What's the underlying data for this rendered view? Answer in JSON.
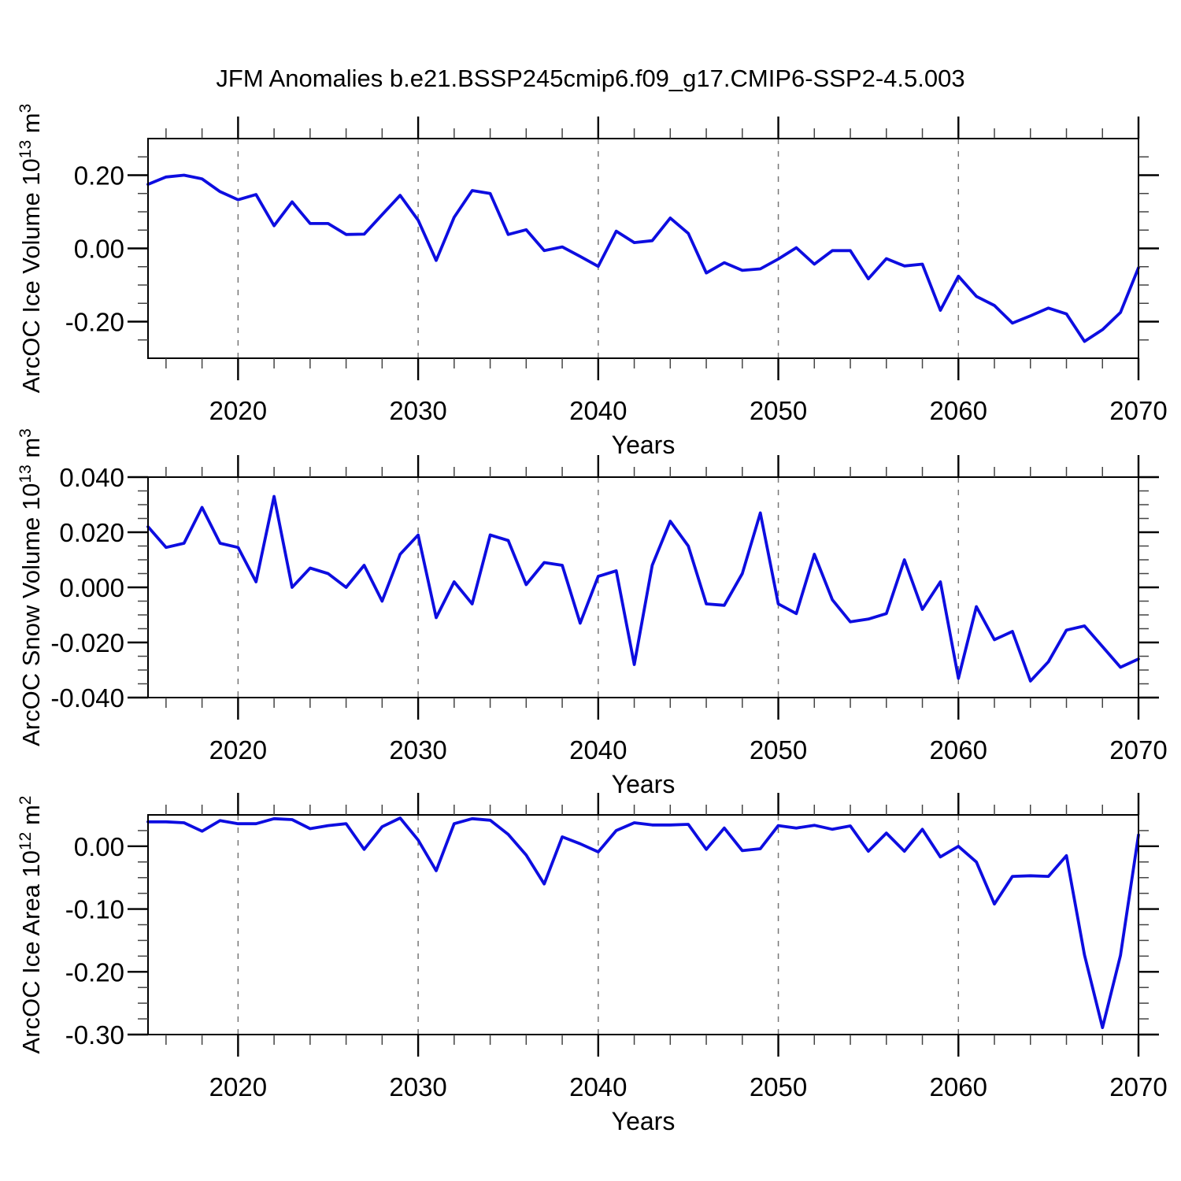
{
  "title": "JFM Anomalies b.e21.BSSP245cmip6.f09_g17.CMIP6-SSP2-4.5.003",
  "xlabel": "Years",
  "colors": {
    "line": "#0d0de0",
    "grid": "#777777",
    "axis": "#000000",
    "text": "#000000",
    "minor_tick": "#444444"
  },
  "chart_data": [
    {
      "type": "line",
      "panel": "ice-volume",
      "ylabel_segments": [
        {
          "t": "ArcOC Ice Volume 10",
          "sup": false
        },
        {
          "t": "13",
          "sup": true
        },
        {
          "t": " m",
          "sup": false
        },
        {
          "t": "3",
          "sup": true
        }
      ],
      "xlabel": "Years",
      "xlim": [
        2015,
        2070
      ],
      "ylim": [
        -0.3,
        0.3
      ],
      "x_major_ticks": [
        2020,
        2030,
        2040,
        2050,
        2060,
        2070
      ],
      "x_tick_labels": [
        "2020",
        "2030",
        "2040",
        "2050",
        "2060",
        "2070"
      ],
      "x_minor_step": 2,
      "grid_years": [
        2020,
        2030,
        2040,
        2050,
        2060
      ],
      "yticks_major": [
        {
          "v": 0.2,
          "label": "0.20"
        },
        {
          "v": 0.0,
          "label": "0.00"
        },
        {
          "v": -0.2,
          "label": "-0.20"
        }
      ],
      "yticks_minor": [
        -0.25,
        -0.15,
        -0.1,
        -0.05,
        0.05,
        0.1,
        0.15,
        0.25
      ],
      "x": [
        2015,
        2016,
        2017,
        2018,
        2019,
        2020,
        2021,
        2022,
        2023,
        2024,
        2025,
        2026,
        2027,
        2028,
        2029,
        2030,
        2031,
        2032,
        2033,
        2034,
        2035,
        2036,
        2037,
        2038,
        2039,
        2040,
        2041,
        2042,
        2043,
        2044,
        2045,
        2046,
        2047,
        2048,
        2049,
        2050,
        2051,
        2052,
        2053,
        2054,
        2055,
        2056,
        2057,
        2058,
        2059,
        2060,
        2061,
        2062,
        2063,
        2064,
        2065,
        2066,
        2067,
        2068,
        2069,
        2070
      ],
      "values": [
        0.175,
        0.195,
        0.2,
        0.19,
        0.155,
        0.133,
        0.147,
        0.062,
        0.127,
        0.068,
        0.068,
        0.038,
        0.039,
        0.092,
        0.145,
        0.077,
        -0.033,
        0.085,
        0.158,
        0.15,
        0.038,
        0.051,
        -0.006,
        0.004,
        -0.022,
        -0.049,
        0.047,
        0.016,
        0.021,
        0.083,
        0.041,
        -0.067,
        -0.039,
        -0.06,
        -0.056,
        -0.029,
        0.002,
        -0.043,
        -0.006,
        -0.006,
        -0.083,
        -0.028,
        -0.048,
        -0.043,
        -0.169,
        -0.076,
        -0.131,
        -0.156,
        -0.204,
        -0.184,
        -0.163,
        -0.179,
        -0.254,
        -0.222,
        -0.175,
        -0.053
      ]
    },
    {
      "type": "line",
      "panel": "snow-volume",
      "ylabel_segments": [
        {
          "t": "ArcOC Snow Volume 10",
          "sup": false
        },
        {
          "t": "13",
          "sup": true
        },
        {
          "t": " m",
          "sup": false
        },
        {
          "t": "3",
          "sup": true
        }
      ],
      "xlabel": "Years",
      "xlim": [
        2015,
        2070
      ],
      "ylim": [
        -0.04,
        0.04
      ],
      "x_major_ticks": [
        2020,
        2030,
        2040,
        2050,
        2060,
        2070
      ],
      "x_tick_labels": [
        "2020",
        "2030",
        "2040",
        "2050",
        "2060",
        "2070"
      ],
      "x_minor_step": 2,
      "grid_years": [
        2020,
        2030,
        2040,
        2050,
        2060
      ],
      "yticks_major": [
        {
          "v": 0.04,
          "label": "0.040"
        },
        {
          "v": 0.02,
          "label": "0.020"
        },
        {
          "v": 0.0,
          "label": "0.000"
        },
        {
          "v": -0.02,
          "label": "-0.020"
        },
        {
          "v": -0.04,
          "label": "-0.040"
        }
      ],
      "yticks_minor": [
        -0.035,
        -0.03,
        -0.025,
        -0.015,
        -0.01,
        -0.005,
        0.005,
        0.01,
        0.015,
        0.025,
        0.03,
        0.035
      ],
      "x": [
        2015,
        2016,
        2017,
        2018,
        2019,
        2020,
        2021,
        2022,
        2023,
        2024,
        2025,
        2026,
        2027,
        2028,
        2029,
        2030,
        2031,
        2032,
        2033,
        2034,
        2035,
        2036,
        2037,
        2038,
        2039,
        2040,
        2041,
        2042,
        2043,
        2044,
        2045,
        2046,
        2047,
        2048,
        2049,
        2050,
        2051,
        2052,
        2053,
        2054,
        2055,
        2056,
        2057,
        2058,
        2059,
        2060,
        2061,
        2062,
        2063,
        2064,
        2065,
        2066,
        2067,
        2068,
        2069,
        2070
      ],
      "values": [
        0.022,
        0.0145,
        0.016,
        0.029,
        0.016,
        0.0145,
        0.002,
        0.033,
        0.0,
        0.007,
        0.005,
        0.0,
        0.008,
        -0.005,
        0.012,
        0.019,
        -0.011,
        0.002,
        -0.006,
        0.019,
        0.017,
        0.001,
        0.009,
        0.008,
        -0.013,
        0.004,
        0.006,
        -0.028,
        0.008,
        0.024,
        0.015,
        -0.006,
        -0.0065,
        0.005,
        0.027,
        -0.006,
        -0.0095,
        0.012,
        -0.0045,
        -0.0125,
        -0.0115,
        -0.0095,
        0.01,
        -0.008,
        0.002,
        -0.033,
        -0.007,
        -0.019,
        -0.016,
        -0.034,
        -0.027,
        -0.0155,
        -0.014,
        -0.0215,
        -0.029,
        -0.026
      ]
    },
    {
      "type": "line",
      "panel": "ice-area",
      "ylabel_segments": [
        {
          "t": "ArcOC Ice Area 10",
          "sup": false
        },
        {
          "t": "12",
          "sup": true
        },
        {
          "t": " m",
          "sup": false
        },
        {
          "t": "2",
          "sup": true
        }
      ],
      "xlabel": "Years",
      "xlim": [
        2015,
        2070
      ],
      "ylim": [
        -0.3,
        0.05
      ],
      "x_major_ticks": [
        2020,
        2030,
        2040,
        2050,
        2060,
        2070
      ],
      "x_tick_labels": [
        "2020",
        "2030",
        "2040",
        "2050",
        "2060",
        "2070"
      ],
      "x_minor_step": 2,
      "grid_years": [
        2020,
        2030,
        2040,
        2050,
        2060
      ],
      "yticks_major": [
        {
          "v": 0.0,
          "label": "0.00"
        },
        {
          "v": -0.1,
          "label": "-0.10"
        },
        {
          "v": -0.2,
          "label": "-0.20"
        },
        {
          "v": -0.3,
          "label": "-0.30"
        }
      ],
      "yticks_minor": [
        0.025,
        -0.025,
        -0.05,
        -0.075,
        -0.125,
        -0.15,
        -0.175,
        -0.225,
        -0.25,
        -0.275
      ],
      "x": [
        2015,
        2016,
        2017,
        2018,
        2019,
        2020,
        2021,
        2022,
        2023,
        2024,
        2025,
        2026,
        2027,
        2028,
        2029,
        2030,
        2031,
        2032,
        2033,
        2034,
        2035,
        2036,
        2037,
        2038,
        2039,
        2040,
        2041,
        2042,
        2043,
        2044,
        2045,
        2046,
        2047,
        2048,
        2049,
        2050,
        2051,
        2052,
        2053,
        2054,
        2055,
        2056,
        2057,
        2058,
        2059,
        2060,
        2061,
        2062,
        2063,
        2064,
        2065,
        2066,
        2067,
        2068,
        2069,
        2070
      ],
      "values": [
        0.039,
        0.039,
        0.0375,
        0.024,
        0.041,
        0.036,
        0.036,
        0.044,
        0.0425,
        0.028,
        0.033,
        0.036,
        -0.005,
        0.031,
        0.045,
        0.01,
        -0.039,
        0.036,
        0.044,
        0.0415,
        0.019,
        -0.014,
        -0.06,
        0.015,
        0.004,
        -0.009,
        0.025,
        0.0375,
        0.034,
        0.034,
        0.035,
        -0.005,
        0.029,
        -0.007,
        -0.004,
        0.033,
        0.029,
        0.0335,
        0.027,
        0.0325,
        -0.008,
        0.021,
        -0.008,
        0.027,
        -0.017,
        0.0,
        -0.025,
        -0.092,
        -0.048,
        -0.047,
        -0.048,
        -0.015,
        -0.173,
        -0.289,
        -0.174,
        0.018
      ]
    }
  ]
}
